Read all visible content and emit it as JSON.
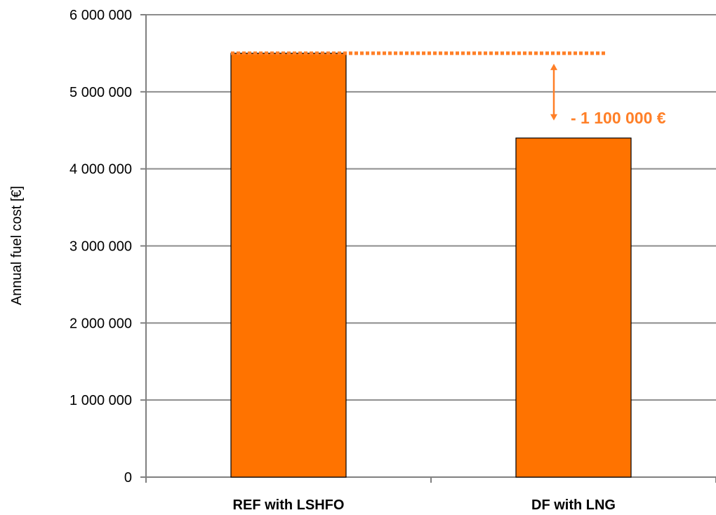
{
  "chart_data": {
    "type": "bar",
    "title": "",
    "xlabel": "",
    "ylabel": "Annual fuel cost [€]",
    "categories": [
      "REF with LSHFO",
      "DF with LNG"
    ],
    "values": [
      5500000,
      4400000
    ],
    "ylim": [
      0,
      6000000
    ],
    "yticks": [
      0,
      1000000,
      2000000,
      3000000,
      4000000,
      5000000,
      6000000
    ],
    "ytick_labels": [
      "0",
      "1 000 000",
      "2 000 000",
      "3 000 000",
      "4 000 000",
      "5 000 000",
      "6 000 000"
    ],
    "grid": true,
    "legend": "none",
    "bar_color": "#ff7300",
    "annotation": {
      "text": "- 1 100 000 €",
      "difference": -1100000,
      "color": "#ff7f27"
    }
  }
}
